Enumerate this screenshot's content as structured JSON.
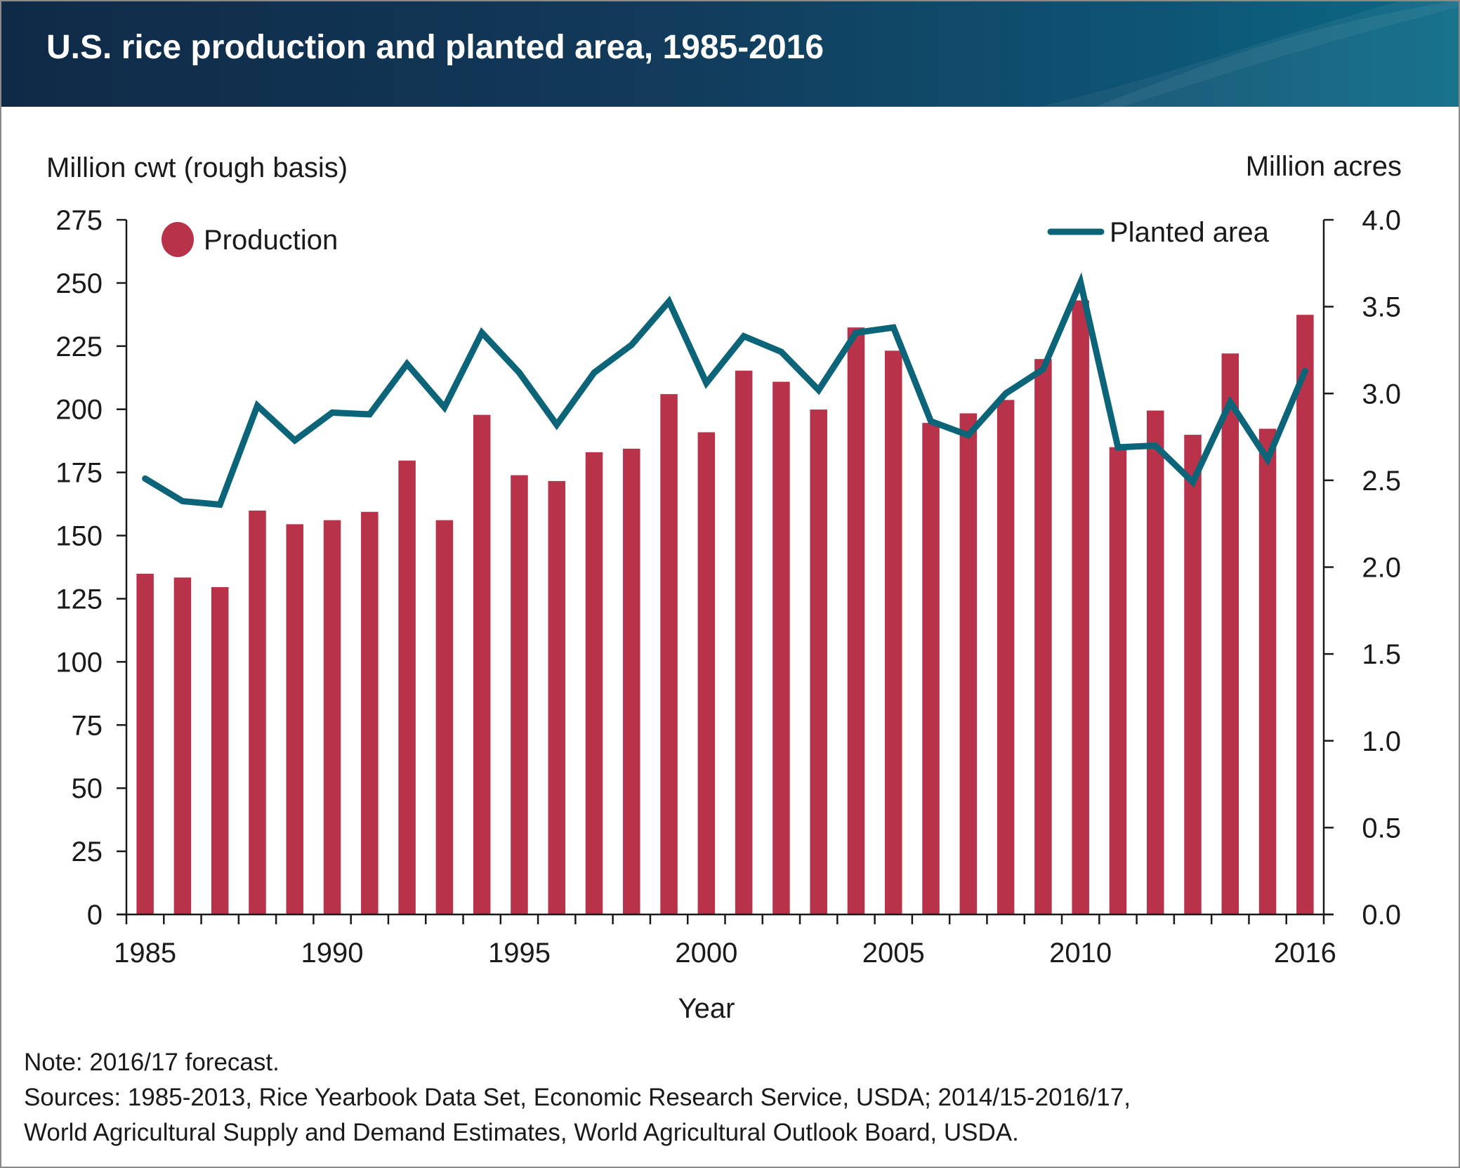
{
  "header": {
    "title": "U.S. rice production and planted area, 1985-2016"
  },
  "colors": {
    "production": "#b8334a",
    "planted_area": "#0b6478",
    "header_start": "#0f2a47",
    "header_end": "#0a6b86"
  },
  "chart_data": {
    "type": "bar",
    "title": "U.S. rice production and planted area, 1985-2016",
    "xlabel": "Year",
    "ylabel_left": "Million cwt (rough basis)",
    "ylabel_right": "Million acres",
    "x_tick_labels": [
      "1985",
      "1990",
      "1995",
      "2000",
      "2005",
      "2010",
      "2016"
    ],
    "y_left_ticks": [
      "0",
      "25",
      "50",
      "75",
      "100",
      "125",
      "150",
      "175",
      "200",
      "225",
      "250",
      "275"
    ],
    "y_right_ticks": [
      "0.0",
      "0.5",
      "1.0",
      "1.5",
      "2.0",
      "2.5",
      "3.0",
      "3.5",
      "4.0"
    ],
    "ylim_left": [
      0,
      275
    ],
    "ylim_right": [
      0,
      4.0
    ],
    "legend": {
      "production": "Production",
      "planted_area": "Planted area"
    },
    "categories": [
      1985,
      1986,
      1987,
      1988,
      1989,
      1990,
      1991,
      1992,
      1993,
      1994,
      1995,
      1996,
      1997,
      1998,
      1999,
      2000,
      2001,
      2002,
      2003,
      2004,
      2005,
      2006,
      2007,
      2008,
      2009,
      2010,
      2011,
      2012,
      2013,
      2014,
      2015,
      2016
    ],
    "series": [
      {
        "name": "Production",
        "axis": "left",
        "type": "bar",
        "values": [
          134.9,
          133.4,
          129.6,
          159.9,
          154.5,
          156.1,
          159.4,
          179.7,
          156.1,
          197.8,
          173.9,
          171.6,
          183.0,
          184.4,
          206.0,
          190.9,
          215.3,
          210.9,
          199.9,
          232.4,
          223.2,
          194.6,
          198.4,
          203.7,
          219.9,
          243.1,
          185.0,
          199.5,
          189.9,
          222.1,
          192.3,
          237.4
        ]
      },
      {
        "name": "Planted area",
        "axis": "right",
        "type": "line",
        "values": [
          2.51,
          2.38,
          2.36,
          2.93,
          2.73,
          2.89,
          2.88,
          3.17,
          2.92,
          3.35,
          3.12,
          2.82,
          3.12,
          3.28,
          3.53,
          3.06,
          3.33,
          3.24,
          3.02,
          3.35,
          3.38,
          2.84,
          2.76,
          3.0,
          3.14,
          3.64,
          2.69,
          2.7,
          2.49,
          2.95,
          2.62,
          3.13
        ]
      }
    ]
  },
  "notes": {
    "note": "Note: 2016/17 forecast.",
    "source_1": "Sources: 1985-2013, Rice Yearbook Data Set, Economic Research Service, USDA; 2014/15-2016/17,",
    "source_2": "World Agricultural Supply and Demand Estimates, World Agricultural Outlook Board, USDA."
  }
}
